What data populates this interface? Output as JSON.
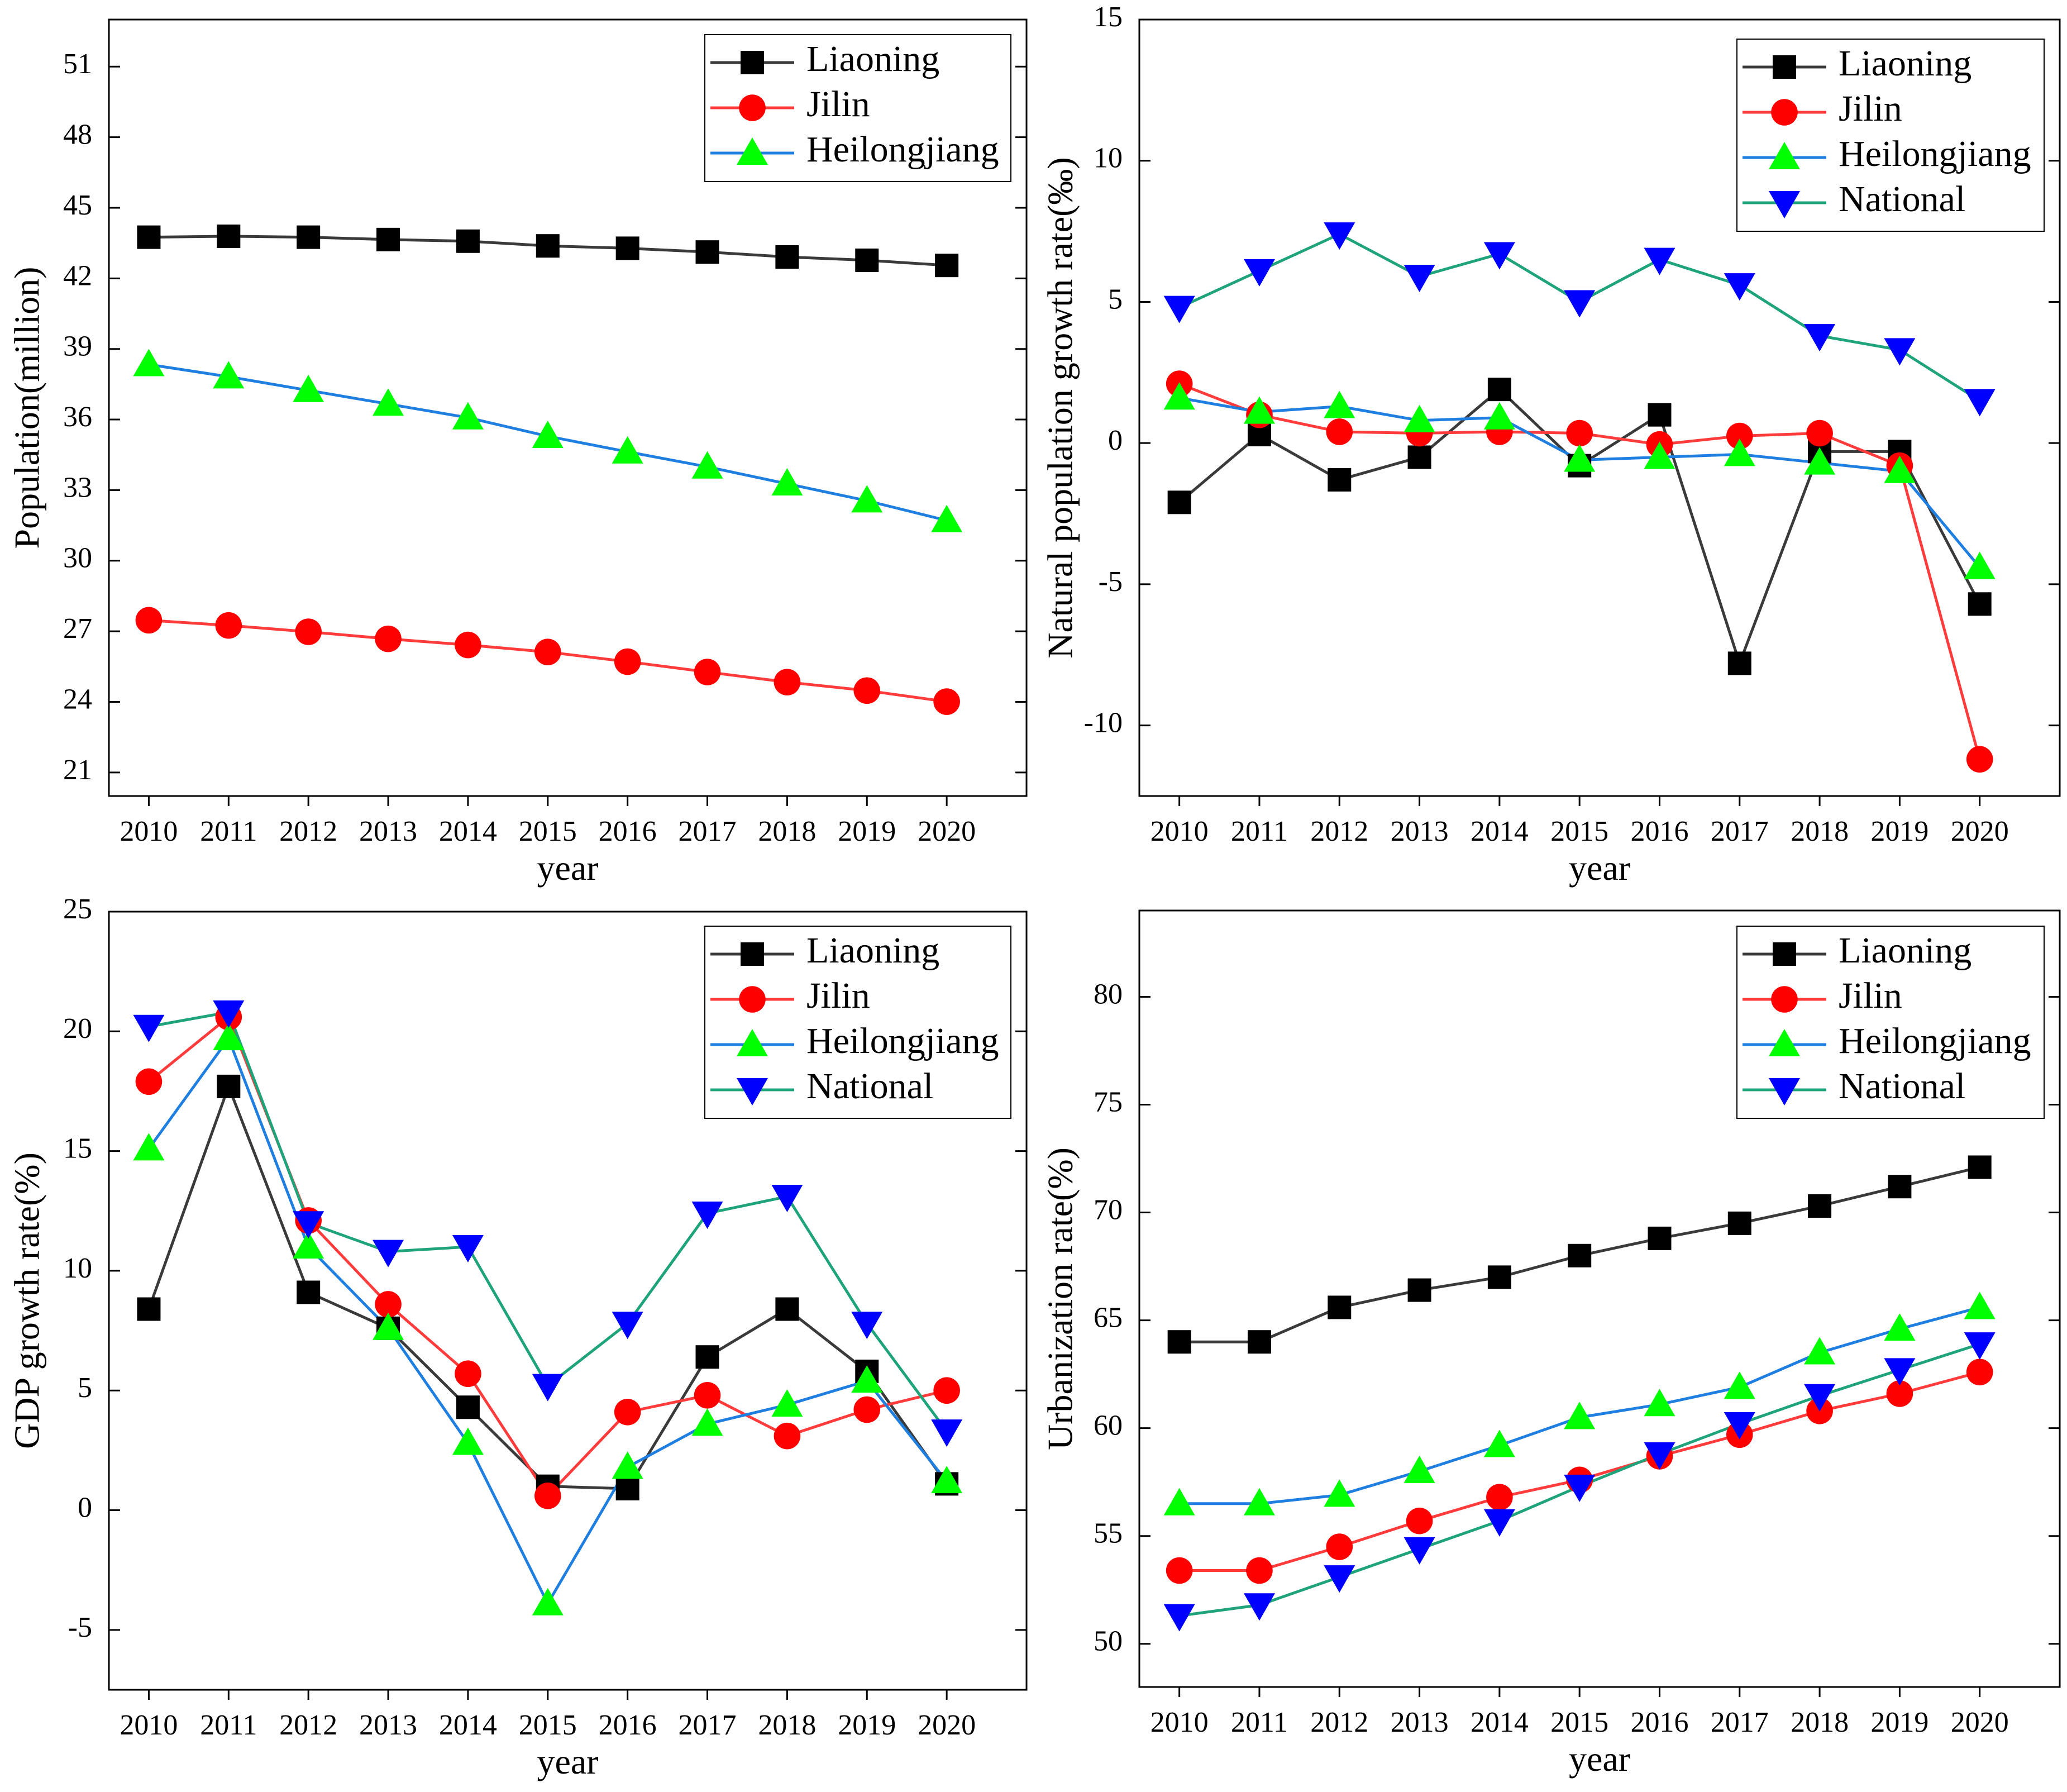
{
  "figure": {
    "colors": {
      "Liaoning": {
        "line": "#3a3a3a",
        "marker": "#000000"
      },
      "Jilin": {
        "line": "#ff3b3b",
        "marker": "#ff0000"
      },
      "Heilongjiang": {
        "line": "#1f7fe0",
        "marker": "#00ff00"
      },
      "National": {
        "line": "#1fa37a",
        "marker": "#0000ff"
      }
    },
    "markers": {
      "Liaoning": "square",
      "Jilin": "circle",
      "Heilongjiang": "triangle-up",
      "National": "triangle-down"
    }
  },
  "chart_data": [
    {
      "type": "line",
      "title": "",
      "xlabel": "year",
      "ylabel": "Population(million)",
      "x": [
        2010,
        2011,
        2012,
        2013,
        2014,
        2015,
        2016,
        2017,
        2018,
        2019,
        2020
      ],
      "xlim": [
        2009.5,
        2021
      ],
      "ylim": [
        20,
        53
      ],
      "yticks": [
        21,
        24,
        27,
        30,
        33,
        36,
        39,
        42,
        45,
        48,
        51
      ],
      "legend": "top-right",
      "series": [
        {
          "name": "Liaoning",
          "values": [
            43.75,
            43.79,
            43.75,
            43.65,
            43.58,
            43.38,
            43.28,
            43.12,
            42.91,
            42.77,
            42.55
          ]
        },
        {
          "name": "Jilin",
          "values": [
            27.47,
            27.25,
            26.98,
            26.68,
            26.42,
            26.12,
            25.71,
            25.27,
            24.84,
            24.48,
            24.01
          ]
        },
        {
          "name": "Heilongjiang",
          "values": [
            38.34,
            37.82,
            37.24,
            36.66,
            36.08,
            35.29,
            34.63,
            33.99,
            33.27,
            32.55,
            31.71
          ]
        }
      ]
    },
    {
      "type": "line",
      "title": "",
      "xlabel": "year",
      "ylabel": "Natural population growth rate(‰)",
      "x": [
        2010,
        2011,
        2012,
        2013,
        2014,
        2015,
        2016,
        2017,
        2018,
        2019,
        2020
      ],
      "xlim": [
        2009.5,
        2021
      ],
      "ylim": [
        -12.5,
        15
      ],
      "yticks": [
        -10,
        -5,
        0,
        5,
        10,
        15
      ],
      "legend": "top-right",
      "series": [
        {
          "name": "Liaoning",
          "values": [
            -2.1,
            0.3,
            -1.3,
            -0.5,
            1.9,
            -0.8,
            1.0,
            -7.8,
            -0.3,
            -0.3,
            -5.7
          ]
        },
        {
          "name": "Jilin",
          "values": [
            2.1,
            1.0,
            0.4,
            0.35,
            0.4,
            0.35,
            -0.05,
            0.25,
            0.35,
            -0.8,
            -11.2
          ]
        },
        {
          "name": "Heilongjiang",
          "values": [
            1.6,
            1.1,
            1.3,
            0.8,
            0.9,
            -0.6,
            -0.5,
            -0.4,
            -0.7,
            -1.0,
            -4.4
          ]
        },
        {
          "name": "National",
          "values": [
            4.8,
            6.1,
            7.4,
            5.9,
            6.7,
            5.0,
            6.5,
            5.6,
            3.8,
            3.3,
            1.5
          ]
        }
      ]
    },
    {
      "type": "line",
      "title": "",
      "xlabel": "year",
      "ylabel": "GDP growth rate(%)",
      "x": [
        2010,
        2011,
        2012,
        2013,
        2014,
        2015,
        2016,
        2017,
        2018,
        2019,
        2020
      ],
      "xlim": [
        2009.5,
        2021
      ],
      "ylim": [
        -7.5,
        25
      ],
      "yticks": [
        -5,
        0,
        5,
        10,
        15,
        20,
        25
      ],
      "legend": "top-right",
      "series": [
        {
          "name": "Liaoning",
          "values": [
            8.4,
            17.7,
            9.1,
            7.6,
            4.3,
            1.0,
            0.9,
            6.4,
            8.4,
            5.8,
            1.1
          ]
        },
        {
          "name": "Jilin",
          "values": [
            17.9,
            20.6,
            12.1,
            8.6,
            5.7,
            0.6,
            4.1,
            4.8,
            3.1,
            4.2,
            5.0
          ]
        },
        {
          "name": "Heilongjiang",
          "values": [
            15.1,
            19.7,
            11.0,
            7.6,
            2.8,
            -3.9,
            1.8,
            3.6,
            4.4,
            5.4,
            1.2
          ]
        },
        {
          "name": "National",
          "values": [
            20.2,
            20.8,
            12.0,
            10.8,
            11.0,
            5.2,
            7.8,
            12.4,
            13.1,
            7.8,
            3.3
          ]
        }
      ]
    },
    {
      "type": "line",
      "title": "",
      "xlabel": "year",
      "ylabel": "Urbanization rate(%)",
      "x": [
        2010,
        2011,
        2012,
        2013,
        2014,
        2015,
        2016,
        2017,
        2018,
        2019,
        2020
      ],
      "xlim": [
        2009.5,
        2021
      ],
      "ylim": [
        48,
        84
      ],
      "yticks": [
        50,
        55,
        60,
        65,
        70,
        75,
        80
      ],
      "legend": "top-right",
      "series": [
        {
          "name": "Liaoning",
          "values": [
            64.0,
            64.0,
            65.6,
            66.4,
            67.0,
            68.0,
            68.8,
            69.5,
            70.3,
            71.2,
            72.1
          ]
        },
        {
          "name": "Jilin",
          "values": [
            53.4,
            53.4,
            54.5,
            55.7,
            56.8,
            57.6,
            58.7,
            59.7,
            60.8,
            61.6,
            62.6
          ]
        },
        {
          "name": "Heilongjiang",
          "values": [
            56.5,
            56.5,
            56.9,
            58.0,
            59.2,
            60.5,
            61.1,
            61.9,
            63.5,
            64.6,
            65.6
          ]
        },
        {
          "name": "National",
          "values": [
            51.3,
            51.8,
            53.1,
            54.4,
            55.7,
            57.3,
            58.8,
            60.2,
            61.5,
            62.7,
            63.9
          ]
        }
      ]
    }
  ]
}
